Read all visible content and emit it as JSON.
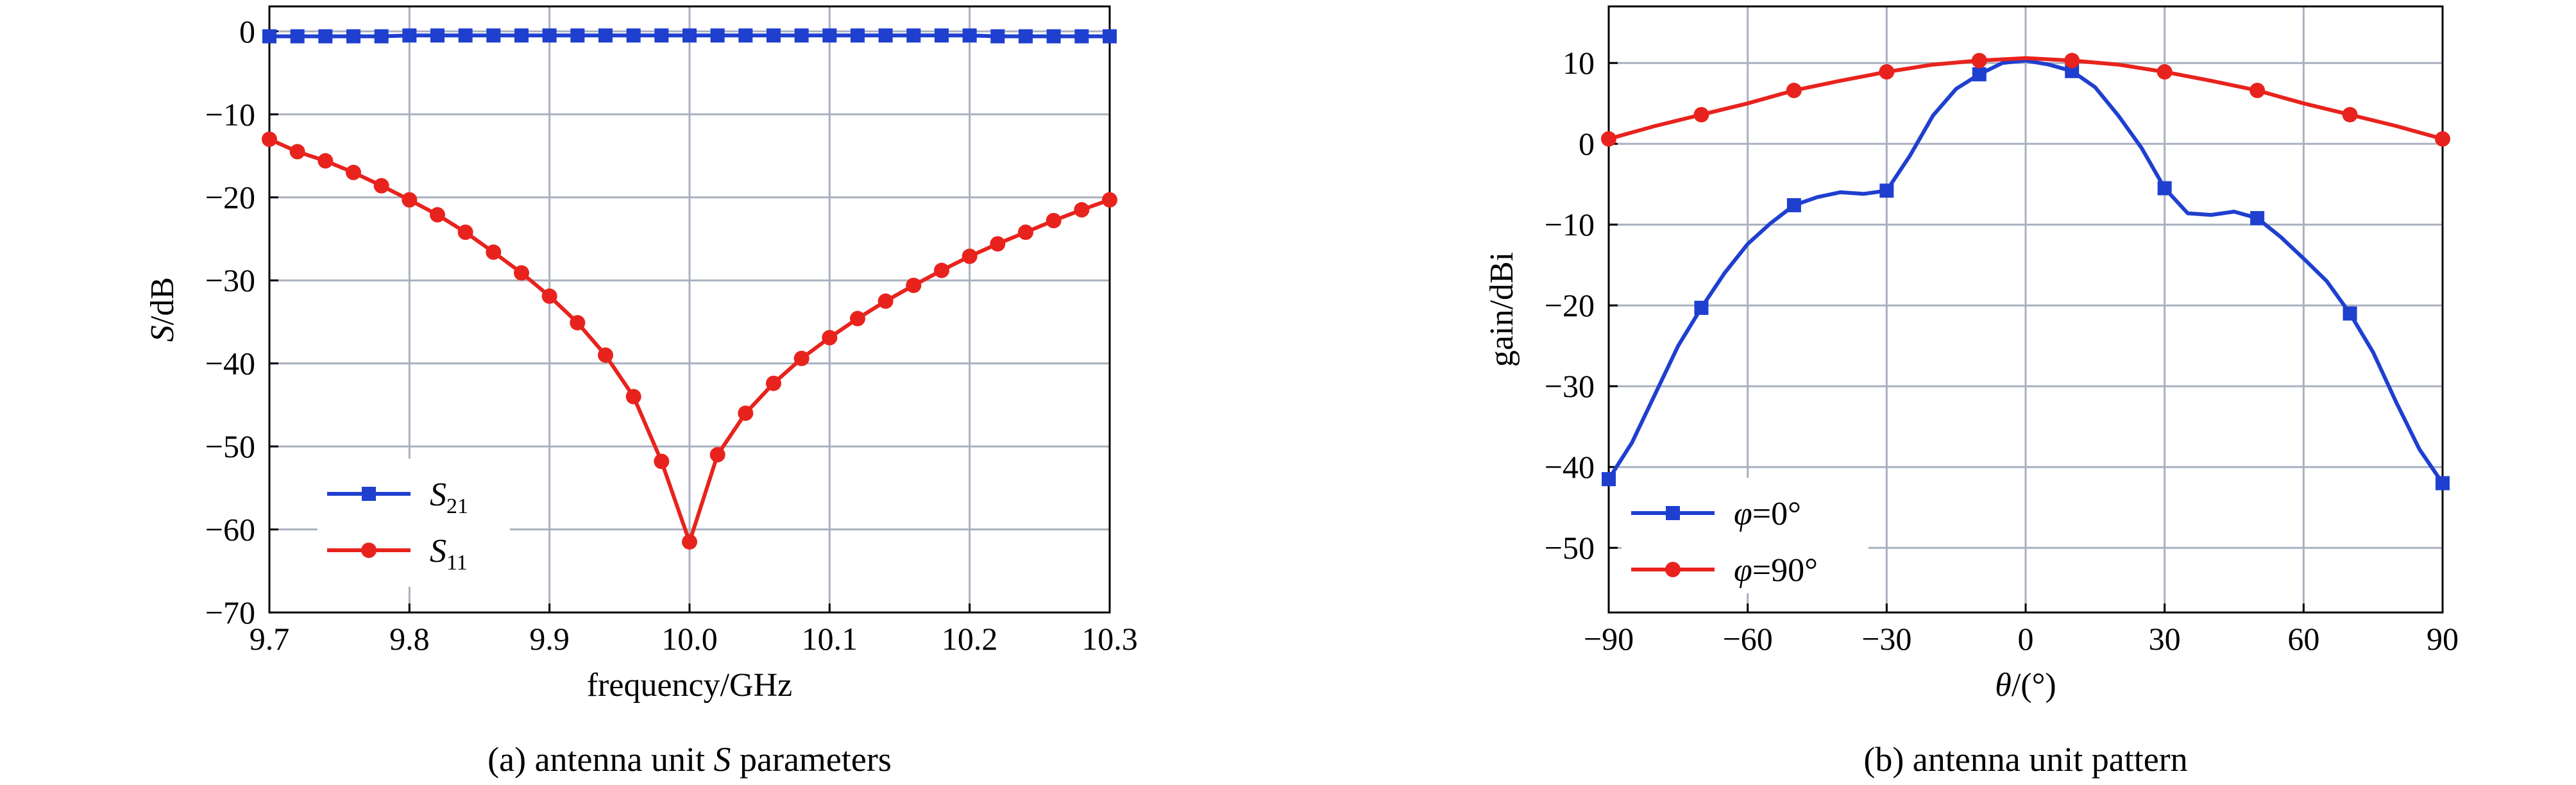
{
  "chart_data": [
    {
      "type": "line",
      "caption": "(a) antenna unit S parameters",
      "caption_parts": {
        "prefix": "(a) antenna unit ",
        "italic": "S",
        "suffix": " parameters"
      },
      "xlabel": "frequency/GHz",
      "ylabel": "S/dB",
      "ylabel_parts": {
        "italic": "S",
        "rest": "/dB"
      },
      "xlim": [
        9.7,
        10.3
      ],
      "ylim": [
        -70,
        3
      ],
      "xticks": [
        9.7,
        9.8,
        9.9,
        10.0,
        10.1,
        10.2,
        10.3
      ],
      "xtick_labels": [
        "9.7",
        "9.8",
        "9.9",
        "10.0",
        "10.1",
        "10.2",
        "10.3"
      ],
      "yticks": [
        0,
        -10,
        -20,
        -30,
        -40,
        -50,
        -60,
        -70
      ],
      "ytick_labels": [
        "0",
        "−10",
        "−20",
        "−30",
        "−40",
        "−50",
        "−60",
        "−70"
      ],
      "grid": true,
      "legend_position": "bottom-left",
      "series": [
        {
          "name": "S21",
          "legend_main": "S",
          "legend_sub": "21",
          "color": "#1f3fcf",
          "marker": "square",
          "x": [
            9.7,
            9.72,
            9.74,
            9.76,
            9.78,
            9.8,
            9.82,
            9.84,
            9.86,
            9.88,
            9.9,
            9.92,
            9.94,
            9.96,
            9.98,
            10.0,
            10.02,
            10.04,
            10.06,
            10.08,
            10.1,
            10.12,
            10.14,
            10.16,
            10.18,
            10.2,
            10.22,
            10.24,
            10.26,
            10.28,
            10.3
          ],
          "y": [
            -0.6,
            -0.6,
            -0.6,
            -0.6,
            -0.6,
            -0.5,
            -0.5,
            -0.5,
            -0.5,
            -0.5,
            -0.5,
            -0.5,
            -0.5,
            -0.5,
            -0.5,
            -0.5,
            -0.5,
            -0.5,
            -0.5,
            -0.5,
            -0.5,
            -0.5,
            -0.5,
            -0.5,
            -0.5,
            -0.5,
            -0.6,
            -0.6,
            -0.6,
            -0.6,
            -0.6
          ]
        },
        {
          "name": "S11",
          "legend_main": "S",
          "legend_sub": "11",
          "color": "#e8231d",
          "marker": "circle",
          "x": [
            9.7,
            9.72,
            9.74,
            9.76,
            9.78,
            9.8,
            9.82,
            9.84,
            9.86,
            9.88,
            9.9,
            9.92,
            9.94,
            9.96,
            9.98,
            10.0,
            10.02,
            10.04,
            10.06,
            10.08,
            10.1,
            10.12,
            10.14,
            10.16,
            10.18,
            10.2,
            10.22,
            10.24,
            10.26,
            10.28,
            10.3
          ],
          "y": [
            -13.0,
            -14.5,
            -15.6,
            -17.0,
            -18.6,
            -20.3,
            -22.1,
            -24.2,
            -26.6,
            -29.1,
            -31.9,
            -35.1,
            -39.0,
            -44.0,
            -51.8,
            -61.5,
            -51.0,
            -46.0,
            -42.4,
            -39.4,
            -36.9,
            -34.6,
            -32.5,
            -30.6,
            -28.8,
            -27.1,
            -25.6,
            -24.2,
            -22.8,
            -21.5,
            -20.3
          ]
        }
      ]
    },
    {
      "type": "line",
      "caption": "(b) antenna unit pattern",
      "xlabel": "θ/(°)",
      "xlabel_parts": {
        "italic": "θ",
        "rest": "/(°)"
      },
      "ylabel": "gain/dBi",
      "xlim": [
        -90,
        90
      ],
      "ylim": [
        -58,
        17
      ],
      "xticks": [
        -90,
        -60,
        -30,
        0,
        30,
        60,
        90
      ],
      "xtick_labels": [
        "−90",
        "−60",
        "−30",
        "0",
        "30",
        "60",
        "90"
      ],
      "yticks": [
        10,
        0,
        -10,
        -20,
        -30,
        -40,
        -50
      ],
      "ytick_labels": [
        "10",
        "0",
        "−10",
        "−20",
        "−30",
        "−40",
        "−50"
      ],
      "grid": true,
      "legend_position": "bottom-left",
      "series": [
        {
          "name": "φ=0°",
          "legend_main": "φ",
          "legend_rest": "=0°",
          "color": "#1f3fcf",
          "marker": "square",
          "marker_x": [
            -90,
            -70,
            -50,
            -30,
            -10,
            10,
            30,
            50,
            70,
            90
          ],
          "x": [
            -90,
            -85,
            -80,
            -75,
            -70,
            -65,
            -60,
            -55,
            -50,
            -45,
            -40,
            -35,
            -30,
            -25,
            -20,
            -15,
            -10,
            -5,
            0,
            5,
            10,
            15,
            20,
            25,
            30,
            35,
            40,
            45,
            50,
            55,
            60,
            65,
            70,
            75,
            80,
            85,
            90
          ],
          "y": [
            -41.5,
            -37.0,
            -31.0,
            -25.0,
            -20.3,
            -16.0,
            -12.4,
            -9.8,
            -7.6,
            -6.6,
            -6.0,
            -6.2,
            -5.8,
            -1.5,
            3.5,
            6.8,
            8.6,
            10.0,
            10.3,
            9.8,
            9.0,
            7.0,
            3.5,
            -0.5,
            -5.5,
            -8.6,
            -8.8,
            -8.4,
            -9.2,
            -11.5,
            -14.2,
            -17.0,
            -21.0,
            -25.8,
            -32.0,
            -37.8,
            -42.0
          ]
        },
        {
          "name": "φ=90°",
          "legend_main": "φ",
          "legend_rest": "=90°",
          "color": "#e8231d",
          "marker": "circle",
          "marker_x": [
            -90,
            -70,
            -50,
            -30,
            -10,
            10,
            30,
            50,
            70,
            90
          ],
          "x": [
            -90,
            -80,
            -70,
            -60,
            -50,
            -40,
            -30,
            -20,
            -10,
            0,
            10,
            20,
            30,
            40,
            50,
            60,
            70,
            80,
            90
          ],
          "y": [
            0.6,
            2.2,
            3.6,
            5.0,
            6.6,
            7.8,
            8.9,
            9.8,
            10.3,
            10.6,
            10.3,
            9.8,
            8.9,
            7.8,
            6.6,
            5.0,
            3.6,
            2.2,
            0.6
          ]
        }
      ]
    }
  ]
}
